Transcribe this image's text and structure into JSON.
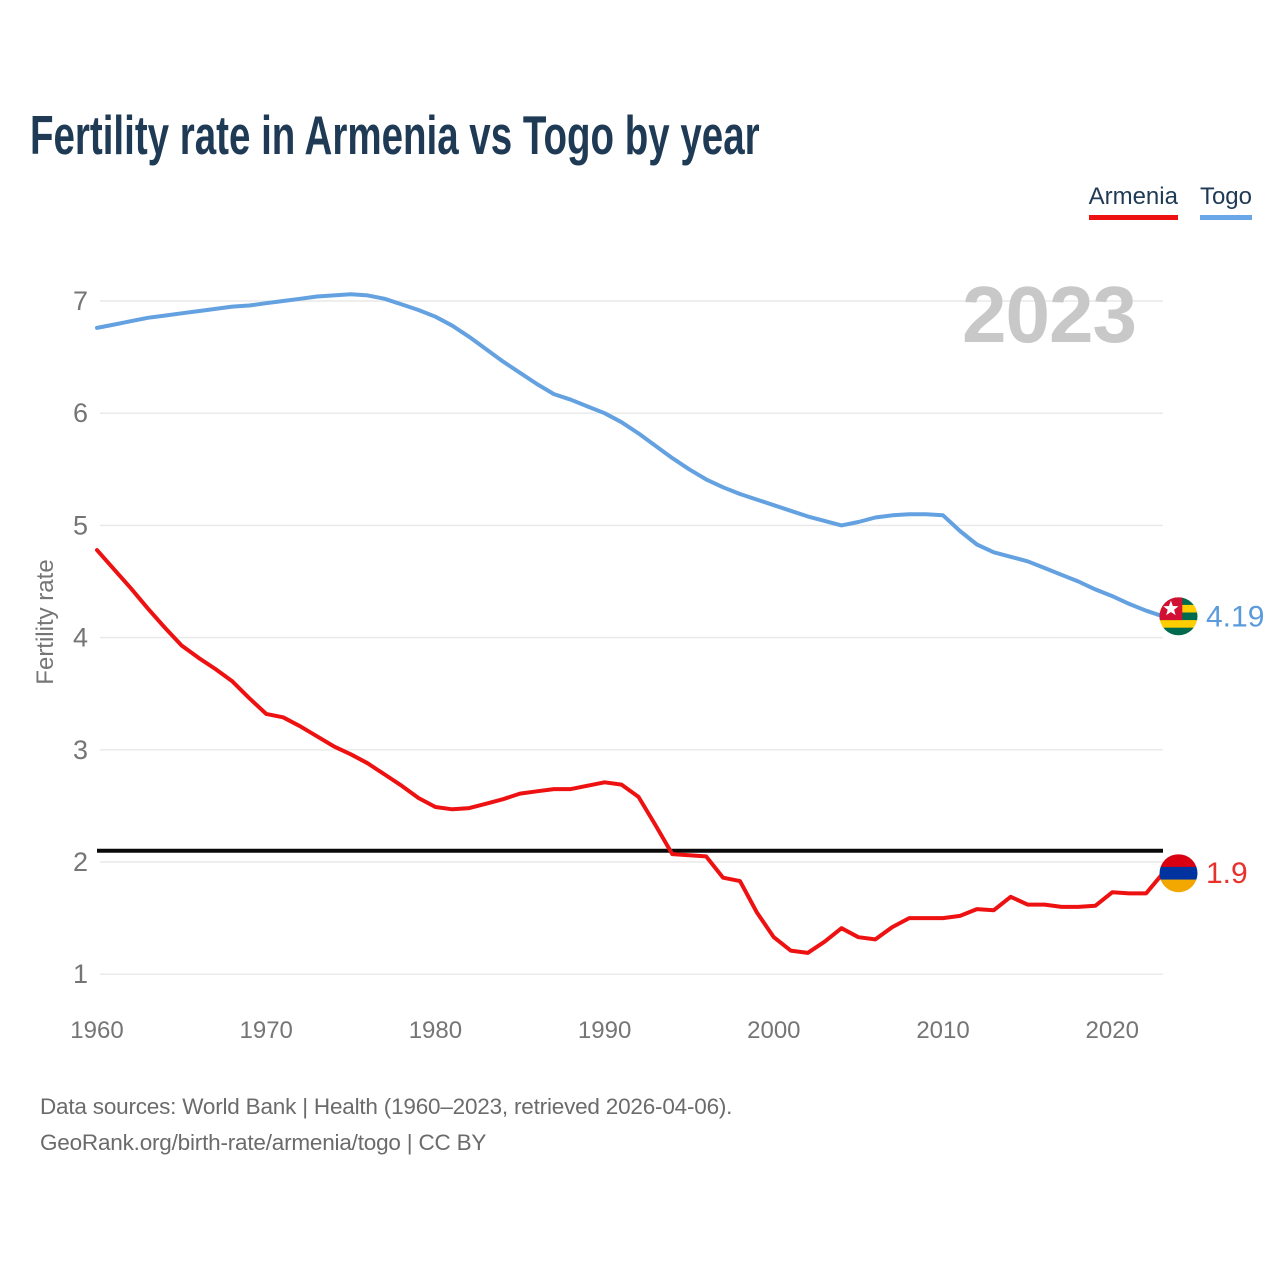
{
  "title": "Fertility rate in Armenia vs Togo by year",
  "watermark": "2023",
  "legend": {
    "items": [
      {
        "label": "Armenia",
        "color": "#ee1111"
      },
      {
        "label": "Togo",
        "color": "#6aa7e8"
      }
    ]
  },
  "y_axis": {
    "label": "Fertility rate"
  },
  "footer": {
    "line1": "Data sources: World Bank | Health (1960–2023, retrieved 2026-04-06).",
    "line2": "GeoRank.org/birth-rate/armenia/togo | CC BY"
  },
  "colors": {
    "title_text": "#1f3a54",
    "axis_text": "#757575",
    "grid": "#e8e8e8",
    "watermark": "#c8c8c8",
    "footer_text": "#6b6b6b",
    "reference_line": "#0a0a0a"
  },
  "flags": {
    "togo": {
      "stripes": [
        "#006a4e",
        "#ffce00"
      ],
      "canton": "#d21034",
      "star": "#ffffff"
    },
    "armenia": {
      "stripes": [
        "#d90012",
        "#0033a0",
        "#f2a800"
      ]
    }
  },
  "chart_data": {
    "type": "line",
    "title": "Fertility rate in Armenia vs Togo by year",
    "xlabel": "",
    "ylabel": "Fertility rate",
    "x_start": 1960,
    "x_end": 2023,
    "x_step": 1,
    "xticks": [
      1960,
      1970,
      1980,
      1990,
      2000,
      2010,
      2020
    ],
    "yticks": [
      1,
      2,
      3,
      4,
      5,
      6,
      7
    ],
    "ylim": [
      0.75,
      7.35
    ],
    "grid": "horizontal",
    "legend_position": "top-right",
    "watermark_year": "2023",
    "reference_line": {
      "value": 2.1
    },
    "series": [
      {
        "name": "Togo",
        "color": "#64a1e0",
        "end_label": "4.19",
        "end_label_color": "#5b9bdc",
        "end_value": 4.19,
        "values": [
          6.76,
          6.79,
          6.82,
          6.85,
          6.87,
          6.89,
          6.91,
          6.93,
          6.95,
          6.96,
          6.98,
          7.0,
          7.02,
          7.04,
          7.05,
          7.06,
          7.05,
          7.02,
          6.97,
          6.92,
          6.86,
          6.78,
          6.68,
          6.57,
          6.46,
          6.36,
          6.26,
          6.17,
          6.12,
          6.06,
          6.0,
          5.92,
          5.82,
          5.71,
          5.6,
          5.5,
          5.41,
          5.34,
          5.28,
          5.23,
          5.18,
          5.13,
          5.08,
          5.04,
          5.0,
          5.03,
          5.07,
          5.09,
          5.1,
          5.1,
          5.09,
          4.95,
          4.83,
          4.76,
          4.72,
          4.68,
          4.62,
          4.56,
          4.5,
          4.43,
          4.37,
          4.3,
          4.24,
          4.19
        ]
      },
      {
        "name": "Armenia",
        "color": "#ee1111",
        "end_label": "1.9",
        "end_label_color": "#e8312a",
        "end_value": 1.9,
        "values": [
          4.78,
          4.61,
          4.44,
          4.26,
          4.09,
          3.93,
          3.82,
          3.72,
          3.61,
          3.46,
          3.32,
          3.29,
          3.21,
          3.12,
          3.03,
          2.96,
          2.88,
          2.78,
          2.68,
          2.57,
          2.49,
          2.47,
          2.48,
          2.52,
          2.56,
          2.61,
          2.63,
          2.65,
          2.65,
          2.68,
          2.71,
          2.69,
          2.58,
          2.33,
          2.07,
          2.06,
          2.05,
          1.86,
          1.83,
          1.55,
          1.33,
          1.21,
          1.19,
          1.29,
          1.41,
          1.33,
          1.31,
          1.42,
          1.5,
          1.5,
          1.5,
          1.52,
          1.58,
          1.57,
          1.69,
          1.62,
          1.62,
          1.6,
          1.6,
          1.61,
          1.73,
          1.72,
          1.72,
          1.9
        ]
      }
    ]
  }
}
